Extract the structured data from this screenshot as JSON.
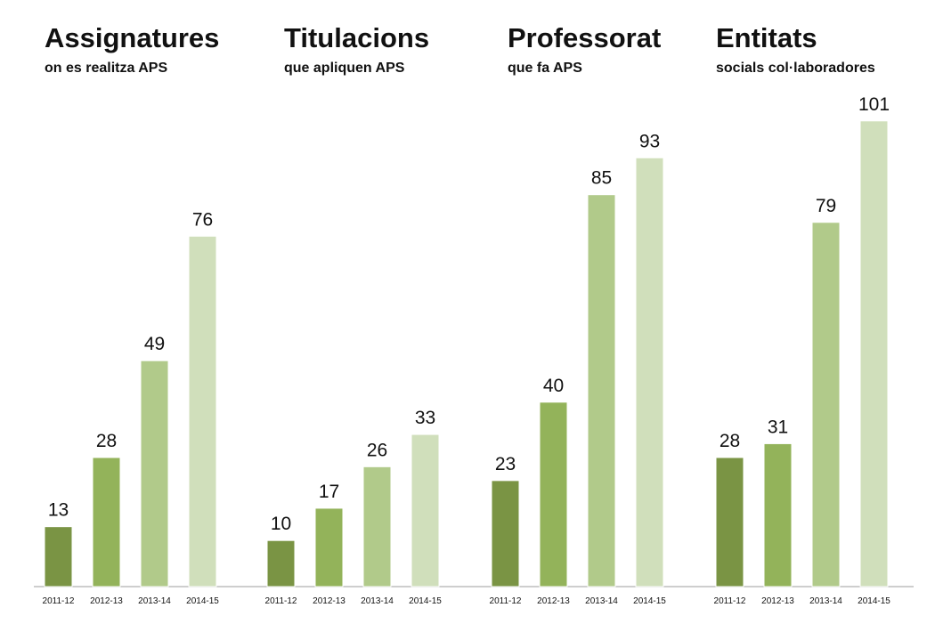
{
  "chart_data": {
    "type": "bar",
    "colors": [
      "#7a9444",
      "#93b35a",
      "#b1ca8a",
      "#d0dfbb"
    ],
    "panels": [
      {
        "title": "Assignatures",
        "subtitle": "on es realitza APS",
        "categories": [
          "2011-12",
          "2012-13",
          "2013-14",
          "2014-15"
        ],
        "values": [
          13,
          28,
          49,
          76
        ]
      },
      {
        "title": "Titulacions",
        "subtitle": "que apliquen APS",
        "categories": [
          "2011-12",
          "2012-13",
          "2013-14",
          "2014-15"
        ],
        "values": [
          10,
          17,
          26,
          33
        ]
      },
      {
        "title": "Professorat",
        "subtitle": "que fa APS",
        "categories": [
          "2011-12",
          "2012-13",
          "2013-14",
          "2014-15"
        ],
        "values": [
          23,
          40,
          85,
          93
        ]
      },
      {
        "title": "Entitats",
        "subtitle": "socials col·laboradores",
        "categories": [
          "2011-12",
          "2012-13",
          "2013-14",
          "2014-15"
        ],
        "values": [
          28,
          31,
          79,
          101
        ]
      }
    ]
  }
}
